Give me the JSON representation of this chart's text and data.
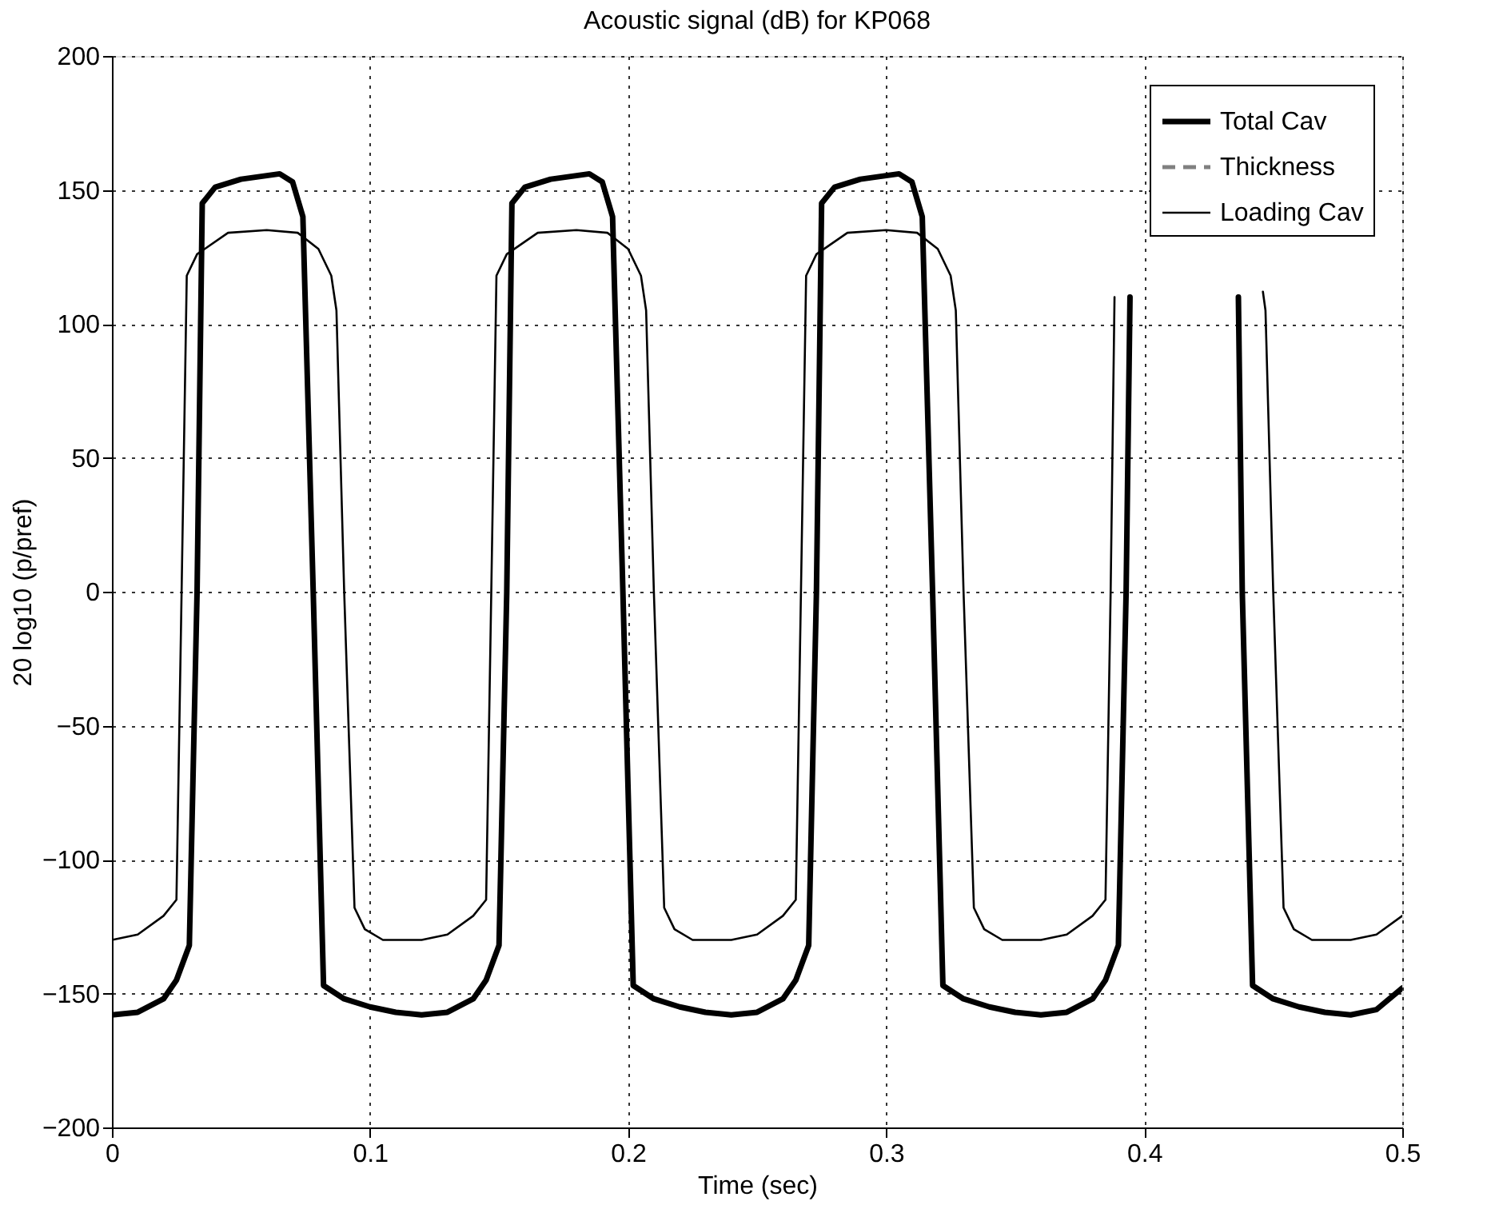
{
  "chart_data": {
    "type": "line",
    "title": "Acoustic signal (dB) for KP068",
    "xlabel": "Time (sec)",
    "ylabel": "20 log10 (p/pref)",
    "xlim": [
      0,
      0.5
    ],
    "xticks": [
      0,
      0.1,
      0.2,
      0.3,
      0.4,
      0.5
    ],
    "ylim": [
      -200,
      200
    ],
    "yticks": [
      -200,
      -150,
      -100,
      -50,
      0,
      50,
      100,
      150,
      200
    ],
    "grid": true,
    "legend": "top right",
    "marker": "none",
    "series": [
      {
        "name": "Total Cav",
        "color": "#000000",
        "line_style": "solid",
        "x": [
          0,
          0.01,
          0.02,
          0.025,
          0.03,
          0.033,
          0.035,
          0.04,
          0.05,
          0.065,
          0.07,
          0.074,
          0.078,
          0.082,
          0.09,
          0.1,
          0.11,
          0.12,
          0.13,
          0.14,
          0.145,
          0.15,
          0.153,
          0.155,
          0.16,
          0.17,
          0.185,
          0.19,
          0.194,
          0.198,
          0.202,
          0.21,
          0.22,
          0.23,
          0.24,
          0.25,
          0.26,
          0.265,
          0.27,
          0.273,
          0.275,
          0.28,
          0.29,
          0.305,
          0.31,
          0.314,
          0.318,
          0.322,
          0.33,
          0.34,
          0.35,
          0.36,
          0.37,
          0.38,
          0.385,
          0.39,
          0.393,
          0.3945,
          0.41,
          0.4365,
          0.438,
          0.442,
          0.45,
          0.46,
          0.47,
          0.48,
          0.49,
          0.5
        ],
        "values": [
          -158,
          -157,
          -152,
          -145,
          -132,
          0,
          145,
          151,
          154,
          156,
          153,
          140,
          0,
          -147,
          -152,
          -155,
          -157,
          -158,
          -157,
          -152,
          -145,
          -132,
          0,
          145,
          151,
          154,
          156,
          153,
          140,
          0,
          -147,
          -152,
          -155,
          -157,
          -158,
          -157,
          -152,
          -145,
          -132,
          0,
          145,
          151,
          154,
          156,
          153,
          140,
          0,
          -147,
          -152,
          -155,
          -157,
          -158,
          -157,
          -152,
          -145,
          -132,
          0,
          110,
          null,
          110,
          0,
          -147,
          -152,
          -155,
          -157,
          -158,
          -156,
          -148
        ]
      },
      {
        "name": "Thickness",
        "color": "#808080",
        "line_style": "dashed"
      },
      {
        "name": "Loading Cav",
        "color": "#000000",
        "line_style": "solid",
        "x": [
          0,
          0.01,
          0.02,
          0.025,
          0.027,
          0.029,
          0.033,
          0.045,
          0.06,
          0.072,
          0.08,
          0.085,
          0.087,
          0.09,
          0.094,
          0.098,
          0.105,
          0.115,
          0.12,
          0.13,
          0.14,
          0.145,
          0.147,
          0.149,
          0.153,
          0.165,
          0.18,
          0.192,
          0.2,
          0.205,
          0.207,
          0.21,
          0.214,
          0.218,
          0.225,
          0.235,
          0.24,
          0.25,
          0.26,
          0.265,
          0.267,
          0.269,
          0.273,
          0.285,
          0.3,
          0.312,
          0.32,
          0.325,
          0.327,
          0.33,
          0.334,
          0.338,
          0.345,
          0.355,
          0.36,
          0.37,
          0.38,
          0.385,
          0.387,
          0.3885,
          0.41,
          0.446,
          0.447,
          0.45,
          0.454,
          0.458,
          0.465,
          0.475,
          0.48,
          0.49,
          0.5
        ],
        "values": [
          -130,
          -128,
          -121,
          -115,
          0,
          118,
          126,
          134,
          135,
          134,
          128,
          118,
          105,
          0,
          -118,
          -126,
          -130,
          -130,
          -130,
          -128,
          -121,
          -115,
          0,
          118,
          126,
          134,
          135,
          134,
          128,
          118,
          105,
          0,
          -118,
          -126,
          -130,
          -130,
          -130,
          -128,
          -121,
          -115,
          0,
          118,
          126,
          134,
          135,
          134,
          128,
          118,
          105,
          0,
          -118,
          -126,
          -130,
          -130,
          -130,
          -128,
          -121,
          -115,
          0,
          110,
          null,
          112,
          105,
          0,
          -118,
          -126,
          -130,
          -130,
          -130,
          -128,
          -121
        ]
      }
    ]
  }
}
